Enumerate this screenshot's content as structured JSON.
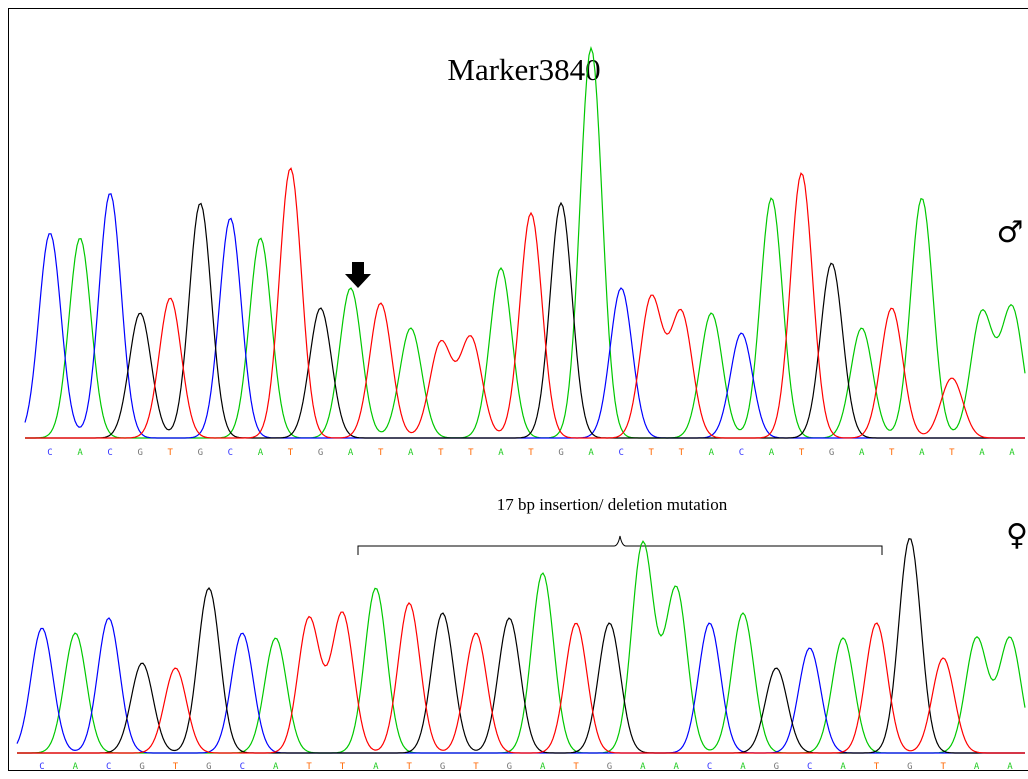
{
  "title": "Marker3840",
  "annotation": "17 bp insertion/ deletion mutation",
  "male": {
    "symbol": "♂",
    "bases": [
      "C",
      "A",
      "C",
      "G",
      "T",
      "G",
      "C",
      "A",
      "T",
      "G",
      "A",
      "T",
      "A",
      "T",
      "T",
      "A",
      "T",
      "G",
      "A",
      "C",
      "T",
      "T",
      "A",
      "C",
      "A",
      "T",
      "G",
      "A",
      "T",
      "A",
      "T",
      "A",
      "A"
    ]
  },
  "female": {
    "symbol": "♀",
    "bases": [
      "C",
      "A",
      "C",
      "G",
      "T",
      "G",
      "C",
      "A",
      "T",
      "T",
      "A",
      "T",
      "G",
      "T",
      "G",
      "A",
      "T",
      "G",
      "A",
      "A",
      "C",
      "A",
      "G",
      "C",
      "A",
      "T",
      "G",
      "T",
      "A",
      "A"
    ]
  }
}
